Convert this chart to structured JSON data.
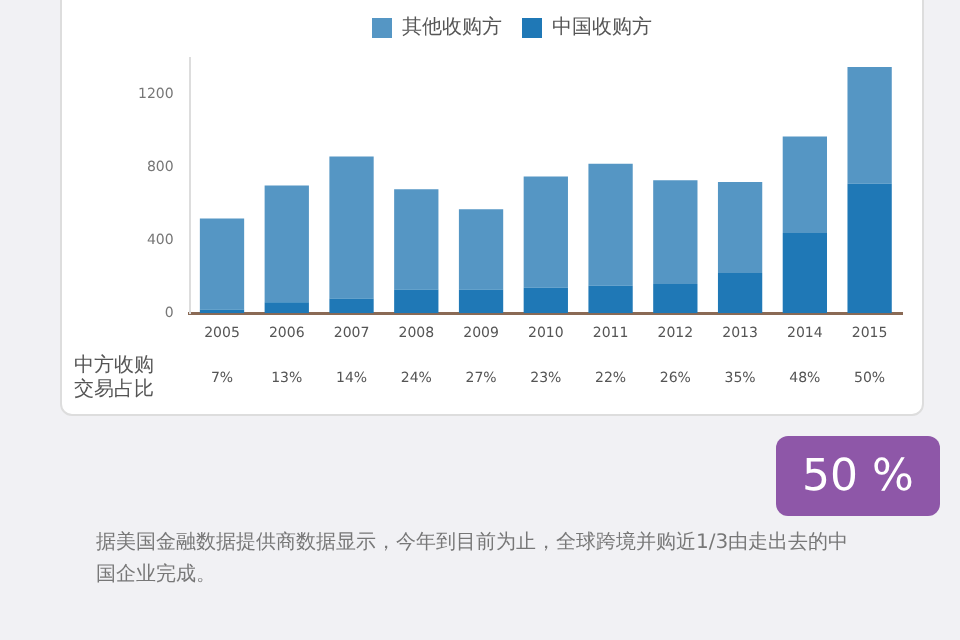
{
  "chart_data": {
    "type": "bar",
    "stacked": true,
    "categories": [
      "2005",
      "2006",
      "2007",
      "2008",
      "2009",
      "2010",
      "2011",
      "2012",
      "2013",
      "2014",
      "2015"
    ],
    "series": [
      {
        "name": "中国收购方",
        "color": "#1f78b6",
        "values": [
          20,
          60,
          80,
          130,
          130,
          140,
          150,
          160,
          220,
          440,
          710
        ]
      },
      {
        "name": "其他收购方",
        "color": "#5596c4",
        "values": [
          500,
          640,
          780,
          550,
          440,
          610,
          670,
          570,
          500,
          530,
          640
        ]
      }
    ],
    "ylim": [
      0,
      1400
    ],
    "yticks": [
      0,
      400,
      800,
      1200
    ],
    "legend": "top",
    "annotations": [
      "中方收购交易占比",
      "7%",
      "13%",
      "14%",
      "24%",
      "27%",
      "23%",
      "22%",
      "26%",
      "35%",
      "48%",
      "50%",
      "50 %",
      "据美国金融数据提供商数据显示，今年到目前为止，全球跨境并购近1/3由走出去的中国企业完成。"
    ]
  }
}
